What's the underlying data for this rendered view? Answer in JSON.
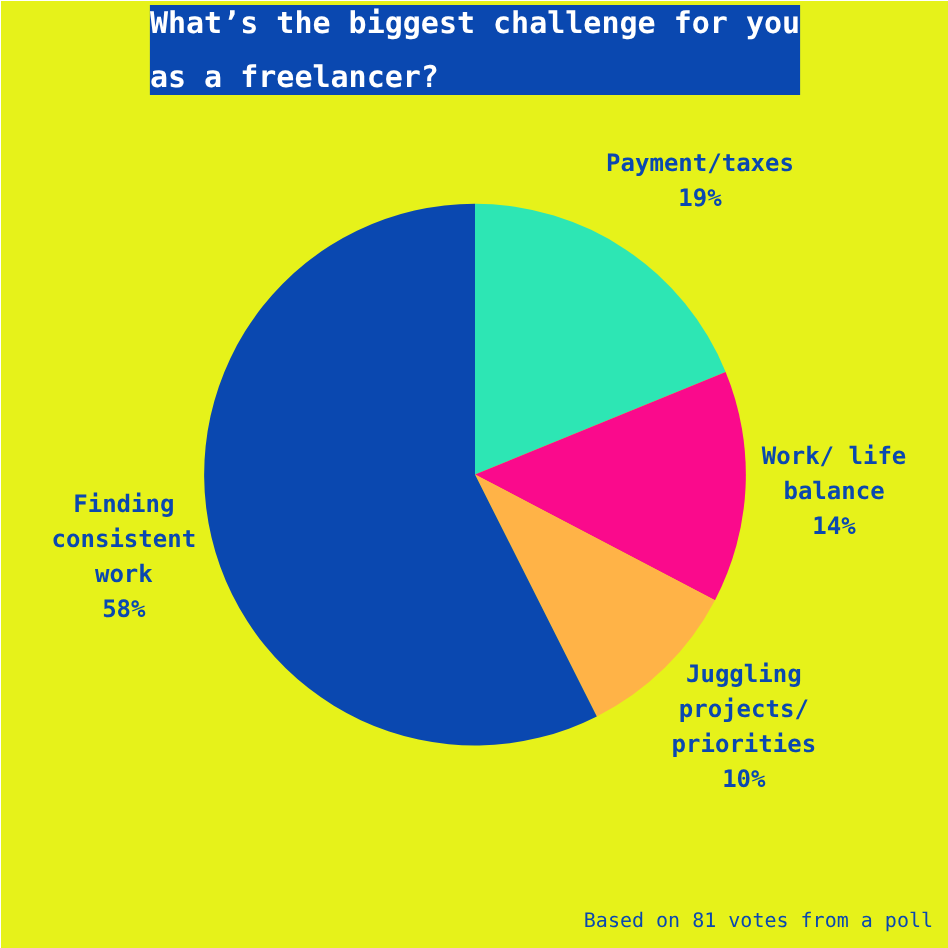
{
  "chart_data": {
    "type": "pie",
    "title": "What’s the biggest challenge for you as a freelancer?",
    "categories": [
      "Payment/taxes",
      "Work/ life balance",
      "Juggling projects/ priorities",
      "Finding consistent work"
    ],
    "values": [
      19,
      14,
      10,
      58
    ],
    "value_labels": [
      "19%",
      "14%",
      "10%",
      "58%"
    ],
    "colors": [
      "#2de6b4",
      "#fa0a8c",
      "#ffb347",
      "#0a48b0"
    ],
    "annotations": [
      "Based on 81 votes from a poll"
    ]
  }
}
